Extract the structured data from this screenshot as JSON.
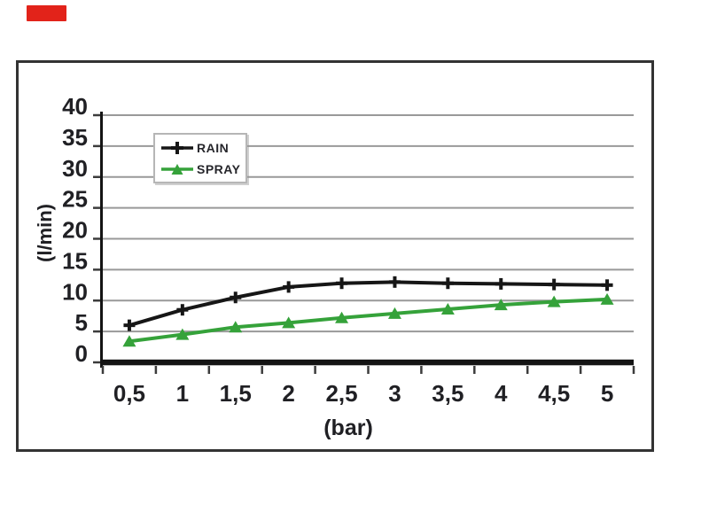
{
  "page": {
    "background": "#ffffff"
  },
  "annotation": {
    "red_marker_color": "#e2231a"
  },
  "figure": {
    "border_color": "#333333",
    "background": "#ffffff"
  },
  "style": {
    "grid_color": "#999999",
    "axis_color": "#141414",
    "tick_color": "#3c3c3c",
    "text_color": "#202024"
  },
  "chart_data": {
    "type": "line",
    "title": "",
    "xlabel": "(bar)",
    "ylabel": "(l/min)",
    "categories": [
      "0,5",
      "1",
      "1,5",
      "2",
      "2,5",
      "3",
      "3,5",
      "4",
      "4,5",
      "5"
    ],
    "x_values": [
      0.5,
      1,
      1.5,
      2,
      2.5,
      3,
      3.5,
      4,
      4.5,
      5
    ],
    "y_ticks": [
      0,
      5,
      10,
      15,
      20,
      25,
      30,
      35,
      40
    ],
    "ylim": [
      0,
      40
    ],
    "grid": "horizontal-only",
    "legend_position": "inside-top-left",
    "series": [
      {
        "name": "RAIN",
        "color": "#161616",
        "marker": "plus",
        "values": [
          6,
          8.5,
          10.5,
          12.2,
          12.8,
          13,
          12.8,
          12.7,
          12.6,
          12.5
        ]
      },
      {
        "name": "SPRAY",
        "color": "#35a23a",
        "marker": "triangle-up",
        "values": [
          3.4,
          4.5,
          5.7,
          6.4,
          7.2,
          7.9,
          8.6,
          9.3,
          9.8,
          10.2
        ]
      }
    ]
  }
}
